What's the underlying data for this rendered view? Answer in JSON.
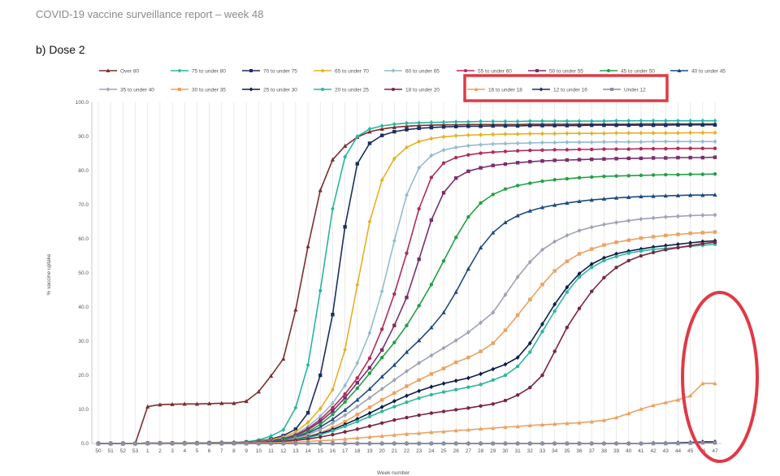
{
  "header": {
    "report_title": "COVID-19 vaccine surveillance report – week 48",
    "section_title": "b) Dose 2"
  },
  "chart_data": {
    "type": "line",
    "xlabel": "Week number",
    "ylabel": "% vaccine uptake",
    "ylim": [
      0,
      100
    ],
    "yticks": [
      "0.0",
      "10.0",
      "20.0",
      "30.0",
      "40.0",
      "50.0",
      "60.0",
      "70.0",
      "80.0",
      "90.0",
      "100.0"
    ],
    "categories": [
      "50",
      "51",
      "52",
      "53",
      "1",
      "2",
      "3",
      "4",
      "5",
      "6",
      "7",
      "8",
      "9",
      "10",
      "11",
      "12",
      "13",
      "14",
      "15",
      "16",
      "17",
      "18",
      "19",
      "20",
      "21",
      "22",
      "23",
      "24",
      "25",
      "26",
      "27",
      "28",
      "29",
      "30",
      "31",
      "32",
      "33",
      "34",
      "35",
      "36",
      "37",
      "38",
      "39",
      "40",
      "41",
      "42",
      "43",
      "44",
      "45",
      "46",
      "47"
    ],
    "legend_position": "top",
    "grid": "vertical",
    "series": [
      {
        "name": "Over 80",
        "color": "#7b2e2e",
        "marker": "triangle",
        "values": [
          0,
          0,
          0,
          0,
          10.8,
          11.4,
          11.5,
          11.6,
          11.6,
          11.7,
          11.8,
          11.8,
          12.4,
          15.2,
          19.8,
          24.8,
          39.2,
          57.8,
          74.2,
          83.2,
          87.2,
          89.8,
          91.4,
          92.2,
          92.7,
          93.0,
          93.2,
          93.3,
          93.4,
          93.4,
          93.5,
          93.5,
          93.5,
          93.5,
          93.5,
          93.6,
          93.6,
          93.6,
          93.6,
          93.6,
          93.6,
          93.6,
          93.6,
          93.6,
          93.7,
          93.7,
          93.7,
          93.7,
          93.7,
          93.7,
          93.7
        ]
      },
      {
        "name": "75 to under 80",
        "color": "#2ab5a0",
        "marker": "diamond",
        "values": [
          0,
          0,
          0,
          0,
          0.1,
          0.1,
          0.1,
          0.2,
          0.2,
          0.2,
          0.3,
          0.3,
          0.5,
          1.0,
          2.2,
          4.0,
          10.5,
          23.0,
          44.8,
          68.8,
          84.0,
          90.0,
          92.2,
          93.1,
          93.6,
          93.9,
          94.0,
          94.1,
          94.2,
          94.3,
          94.3,
          94.4,
          94.4,
          94.4,
          94.4,
          94.5,
          94.5,
          94.5,
          94.5,
          94.5,
          94.5,
          94.5,
          94.6,
          94.6,
          94.6,
          94.6,
          94.6,
          94.6,
          94.6,
          94.6,
          94.6
        ]
      },
      {
        "name": "70 to under 75",
        "color": "#1b2f63",
        "marker": "square",
        "values": [
          0,
          0,
          0,
          0,
          0.1,
          0.1,
          0.1,
          0.1,
          0.1,
          0.2,
          0.2,
          0.2,
          0.4,
          0.7,
          1.3,
          2.3,
          4.2,
          9.0,
          20.0,
          37.8,
          63.5,
          82.0,
          88.0,
          90.3,
          91.4,
          92.0,
          92.4,
          92.6,
          92.8,
          92.9,
          93.0,
          93.0,
          93.1,
          93.1,
          93.1,
          93.2,
          93.2,
          93.2,
          93.2,
          93.2,
          93.3,
          93.3,
          93.3,
          93.3,
          93.3,
          93.3,
          93.3,
          93.4,
          93.4,
          93.4,
          93.4
        ]
      },
      {
        "name": "65 to under 70",
        "color": "#e8b025",
        "marker": "diamond",
        "values": [
          0,
          0,
          0,
          0,
          0.1,
          0.1,
          0.1,
          0.1,
          0.1,
          0.2,
          0.2,
          0.2,
          0.3,
          0.6,
          1.1,
          1.9,
          3.4,
          6.2,
          10.2,
          15.8,
          27.5,
          46.5,
          65.0,
          77.2,
          83.5,
          86.8,
          88.5,
          89.4,
          89.9,
          90.2,
          90.4,
          90.5,
          90.6,
          90.7,
          90.7,
          90.8,
          90.8,
          90.8,
          90.9,
          90.9,
          90.9,
          90.9,
          91.0,
          91.0,
          91.0,
          91.0,
          91.0,
          91.0,
          91.1,
          91.1,
          91.1
        ]
      },
      {
        "name": "60 to under 65",
        "color": "#93bcd1",
        "marker": "diamond",
        "values": [
          0,
          0,
          0,
          0,
          0.1,
          0.1,
          0.1,
          0.1,
          0.1,
          0.2,
          0.2,
          0.2,
          0.3,
          0.5,
          0.9,
          1.6,
          2.8,
          5.0,
          8.0,
          11.8,
          17.0,
          23.6,
          32.4,
          44.6,
          59.4,
          72.8,
          80.8,
          84.4,
          86.0,
          86.8,
          87.3,
          87.6,
          87.8,
          87.9,
          88.0,
          88.1,
          88.2,
          88.2,
          88.3,
          88.3,
          88.3,
          88.4,
          88.4,
          88.4,
          88.4,
          88.5,
          88.5,
          88.5,
          88.5,
          88.5,
          88.5
        ]
      },
      {
        "name": "55 to under 60",
        "color": "#b02c5a",
        "marker": "circle",
        "values": [
          0,
          0,
          0,
          0,
          0.1,
          0.1,
          0.1,
          0.1,
          0.1,
          0.2,
          0.2,
          0.2,
          0.3,
          0.5,
          0.8,
          1.4,
          2.5,
          4.4,
          7.0,
          10.5,
          14.5,
          19.2,
          25.0,
          33.5,
          43.8,
          55.8,
          68.8,
          78.0,
          82.2,
          83.8,
          84.6,
          85.1,
          85.4,
          85.6,
          85.8,
          85.9,
          86.0,
          86.1,
          86.1,
          86.2,
          86.2,
          86.3,
          86.3,
          86.3,
          86.4,
          86.4,
          86.4,
          86.5,
          86.5,
          86.5,
          86.5
        ]
      },
      {
        "name": "50 to under 55",
        "color": "#7a2f6e",
        "marker": "square",
        "values": [
          0,
          0,
          0,
          0,
          0.1,
          0.1,
          0.1,
          0.1,
          0.1,
          0.2,
          0.2,
          0.2,
          0.3,
          0.5,
          0.8,
          1.3,
          2.3,
          4.0,
          6.4,
          9.5,
          13.4,
          17.8,
          22.2,
          27.4,
          34.6,
          42.8,
          54.0,
          65.5,
          73.5,
          77.8,
          79.8,
          80.8,
          81.5,
          81.9,
          82.3,
          82.6,
          82.8,
          83.0,
          83.1,
          83.2,
          83.3,
          83.4,
          83.5,
          83.6,
          83.6,
          83.7,
          83.7,
          83.8,
          83.8,
          83.8,
          83.9
        ]
      },
      {
        "name": "45 to under 50",
        "color": "#22a043",
        "marker": "circle",
        "values": [
          0,
          0,
          0,
          0,
          0.1,
          0.1,
          0.1,
          0.1,
          0.1,
          0.2,
          0.2,
          0.2,
          0.3,
          0.4,
          0.7,
          1.2,
          2.0,
          3.4,
          5.6,
          8.5,
          12.2,
          16.2,
          20.6,
          25.2,
          29.6,
          34.6,
          40.4,
          46.6,
          53.5,
          60.4,
          66.4,
          70.5,
          73.0,
          74.6,
          75.6,
          76.3,
          76.9,
          77.3,
          77.6,
          77.9,
          78.1,
          78.3,
          78.4,
          78.5,
          78.6,
          78.7,
          78.8,
          78.8,
          78.9,
          78.9,
          79.0
        ]
      },
      {
        "name": "40 to under 45",
        "color": "#1f4a80",
        "marker": "triangle",
        "values": [
          0,
          0,
          0,
          0,
          0.1,
          0.1,
          0.1,
          0.1,
          0.1,
          0.2,
          0.2,
          0.2,
          0.3,
          0.4,
          0.7,
          1.1,
          1.8,
          3.0,
          4.8,
          7.1,
          9.8,
          12.8,
          16.0,
          19.6,
          23.0,
          26.8,
          30.2,
          34.0,
          38.4,
          44.4,
          51.2,
          57.4,
          61.8,
          64.8,
          66.8,
          68.2,
          69.2,
          69.9,
          70.5,
          71.0,
          71.4,
          71.7,
          72.0,
          72.2,
          72.4,
          72.5,
          72.6,
          72.7,
          72.8,
          72.8,
          72.9
        ]
      },
      {
        "name": "35 to under 40",
        "color": "#9ea2b6",
        "marker": "diamond",
        "values": [
          0,
          0,
          0,
          0,
          0.1,
          0.1,
          0.1,
          0.1,
          0.1,
          0.2,
          0.2,
          0.2,
          0.3,
          0.4,
          0.6,
          0.9,
          1.6,
          2.6,
          4.1,
          6.0,
          8.3,
          10.8,
          13.4,
          16.0,
          18.6,
          21.2,
          23.6,
          25.8,
          28.0,
          30.2,
          32.6,
          35.4,
          38.4,
          43.6,
          48.8,
          53.2,
          56.8,
          59.2,
          61.0,
          62.4,
          63.4,
          64.2,
          64.8,
          65.3,
          65.8,
          66.1,
          66.4,
          66.6,
          66.8,
          66.9,
          67.0
        ]
      },
      {
        "name": "30 to under 35",
        "color": "#eaa262",
        "marker": "square",
        "values": [
          0,
          0,
          0,
          0,
          0.1,
          0.1,
          0.1,
          0.1,
          0.1,
          0.1,
          0.2,
          0.2,
          0.2,
          0.3,
          0.5,
          0.8,
          1.3,
          2.1,
          3.2,
          4.7,
          6.4,
          8.5,
          10.6,
          12.8,
          14.8,
          16.8,
          18.6,
          20.4,
          22.0,
          23.8,
          25.2,
          27.0,
          29.4,
          33.2,
          37.6,
          42.2,
          46.6,
          50.6,
          53.4,
          55.6,
          57.0,
          58.2,
          59.0,
          59.6,
          60.2,
          60.6,
          61.0,
          61.3,
          61.6,
          61.8,
          62.0
        ]
      },
      {
        "name": "25 to under 30",
        "color": "#0e1d4a",
        "marker": "diamond",
        "values": [
          0,
          0,
          0,
          0,
          0.1,
          0.1,
          0.1,
          0.1,
          0.1,
          0.1,
          0.2,
          0.2,
          0.2,
          0.3,
          0.5,
          0.8,
          1.2,
          1.9,
          2.9,
          4.1,
          5.6,
          7.2,
          8.9,
          10.7,
          12.4,
          14.0,
          15.4,
          16.6,
          17.6,
          18.4,
          19.2,
          20.4,
          21.8,
          23.2,
          25.2,
          29.4,
          35.0,
          40.8,
          45.8,
          49.8,
          52.6,
          54.4,
          55.6,
          56.4,
          57.0,
          57.6,
          58.0,
          58.4,
          58.8,
          59.2,
          59.4
        ]
      },
      {
        "name": "20 to under 25",
        "color": "#2fb79e",
        "marker": "circle",
        "values": [
          0,
          0,
          0,
          0,
          0.1,
          0.1,
          0.1,
          0.1,
          0.1,
          0.1,
          0.2,
          0.2,
          0.2,
          0.3,
          0.4,
          0.7,
          1.1,
          1.7,
          2.6,
          3.7,
          5.0,
          6.4,
          7.9,
          9.4,
          10.8,
          12.1,
          13.3,
          14.3,
          15.1,
          15.8,
          16.5,
          17.3,
          18.6,
          20.0,
          22.6,
          26.8,
          32.8,
          38.8,
          44.4,
          48.8,
          51.6,
          53.6,
          54.8,
          55.8,
          56.4,
          56.9,
          57.2,
          57.5,
          57.8,
          58.1,
          58.4
        ]
      },
      {
        "name": "18 to under 20",
        "color": "#7a2440",
        "marker": "circle",
        "values": [
          0,
          0,
          0,
          0,
          0.1,
          0.1,
          0.1,
          0.1,
          0.1,
          0.1,
          0.1,
          0.1,
          0.2,
          0.3,
          0.4,
          0.6,
          0.9,
          1.3,
          1.9,
          2.6,
          3.4,
          4.2,
          5.1,
          6.0,
          6.9,
          7.6,
          8.3,
          8.9,
          9.4,
          9.9,
          10.4,
          11.0,
          11.6,
          12.6,
          14.2,
          16.4,
          20.0,
          27.0,
          34.0,
          39.6,
          44.6,
          48.6,
          51.6,
          53.6,
          55.0,
          56.0,
          56.8,
          57.4,
          58.0,
          58.6,
          59.0
        ]
      },
      {
        "name": "16 to under 18",
        "color": "#eaa262",
        "marker": "triangle",
        "values": [
          0,
          0,
          0,
          0,
          0.1,
          0.1,
          0.1,
          0.1,
          0.1,
          0.1,
          0.1,
          0.1,
          0.1,
          0.2,
          0.2,
          0.3,
          0.4,
          0.6,
          0.8,
          1.0,
          1.3,
          1.6,
          1.9,
          2.2,
          2.5,
          2.8,
          3.0,
          3.3,
          3.5,
          3.8,
          4.0,
          4.3,
          4.5,
          4.8,
          5.0,
          5.3,
          5.5,
          5.7,
          5.9,
          6.1,
          6.4,
          6.8,
          7.6,
          8.8,
          10.1,
          11.2,
          12.0,
          12.8,
          14.0,
          17.6,
          17.6
        ]
      },
      {
        "name": "12 to under 16",
        "color": "#1f2e63",
        "marker": "diamond",
        "values": [
          0,
          0,
          0,
          0,
          0,
          0,
          0,
          0,
          0,
          0,
          0,
          0,
          0,
          0,
          0,
          0,
          0,
          0,
          0,
          0,
          0,
          0,
          0,
          0,
          0,
          0,
          0,
          0,
          0,
          0,
          0,
          0,
          0,
          0,
          0,
          0,
          0,
          0,
          0,
          0,
          0,
          0,
          0,
          0,
          0,
          0.1,
          0.1,
          0.2,
          0.3,
          0.5,
          0.5
        ]
      },
      {
        "name": "Under 12",
        "color": "#8b8da0",
        "marker": "square",
        "values": [
          0,
          0,
          0,
          0,
          0,
          0,
          0,
          0,
          0,
          0,
          0,
          0,
          0,
          0,
          0,
          0,
          0,
          0,
          0,
          0,
          0,
          0,
          0,
          0,
          0,
          0,
          0,
          0,
          0,
          0,
          0,
          0,
          0,
          0,
          0,
          0,
          0,
          0,
          0,
          0,
          0,
          0,
          0,
          0,
          0,
          0,
          0,
          0,
          0.1,
          0.2,
          0.2
        ]
      }
    ]
  },
  "annotations": {
    "legend_box_color": "#e03a45",
    "ellipse_color": "#e03a45"
  }
}
